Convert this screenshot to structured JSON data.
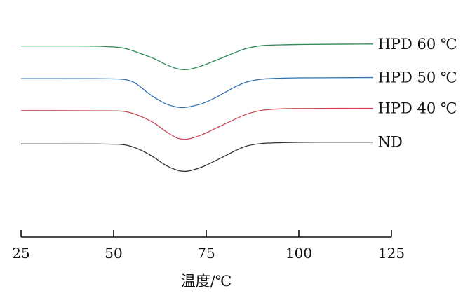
{
  "chart_data": {
    "type": "line",
    "title": "",
    "xlabel": "温度/℃",
    "ylabel": "",
    "xlim": [
      25,
      125
    ],
    "ylim": [
      -8.6,
      4.2
    ],
    "xticks": [
      25,
      50,
      75,
      100,
      125
    ],
    "grid": false,
    "legend": "right-inline",
    "series": [
      {
        "name": "HPD 60 ℃",
        "color": "#2e8a57",
        "x": [
          25,
          35,
          45,
          52,
          55,
          58,
          61,
          64,
          67,
          69,
          71,
          74,
          77,
          80,
          83,
          86,
          90,
          95,
          100,
          110,
          120
        ],
        "y": [
          3.1,
          3.1,
          3.09,
          3.0,
          2.82,
          2.58,
          2.32,
          1.98,
          1.72,
          1.65,
          1.7,
          1.9,
          2.17,
          2.44,
          2.72,
          2.96,
          3.12,
          3.17,
          3.19,
          3.21,
          3.22
        ]
      },
      {
        "name": "HPD 50 ℃",
        "color": "#2f72b0",
        "x": [
          25,
          35,
          45,
          52,
          55,
          57,
          59,
          61,
          64,
          67,
          69,
          71,
          74,
          77,
          80,
          83,
          86,
          90,
          95,
          100,
          110,
          120
        ],
        "y": [
          1.1,
          1.1,
          1.1,
          1.07,
          0.92,
          0.64,
          0.27,
          -0.05,
          -0.43,
          -0.64,
          -0.67,
          -0.6,
          -0.42,
          -0.12,
          0.25,
          0.62,
          0.9,
          1.07,
          1.13,
          1.15,
          1.16,
          1.17
        ]
      },
      {
        "name": "HPD 40 ℃",
        "color": "#c94a55",
        "x": [
          25,
          35,
          45,
          52,
          55,
          58,
          61,
          64,
          67,
          69,
          71,
          74,
          77,
          80,
          83,
          86,
          90,
          95,
          100,
          110,
          120
        ],
        "y": [
          -0.86,
          -0.86,
          -0.87,
          -0.89,
          -1.02,
          -1.28,
          -1.63,
          -2.12,
          -2.52,
          -2.62,
          -2.55,
          -2.32,
          -2.0,
          -1.68,
          -1.36,
          -1.07,
          -0.84,
          -0.75,
          -0.73,
          -0.72,
          -0.72
        ]
      },
      {
        "name": "ND",
        "color": "#333333",
        "x": [
          25,
          35,
          45,
          52,
          55,
          58,
          61,
          64,
          67,
          69,
          71,
          74,
          77,
          80,
          83,
          86,
          90,
          95,
          100,
          110,
          120
        ],
        "y": [
          -2.9,
          -2.9,
          -2.9,
          -2.93,
          -3.07,
          -3.35,
          -3.74,
          -4.2,
          -4.5,
          -4.58,
          -4.52,
          -4.3,
          -3.98,
          -3.64,
          -3.3,
          -3.02,
          -2.87,
          -2.82,
          -2.8,
          -2.79,
          -2.79
        ]
      }
    ]
  }
}
